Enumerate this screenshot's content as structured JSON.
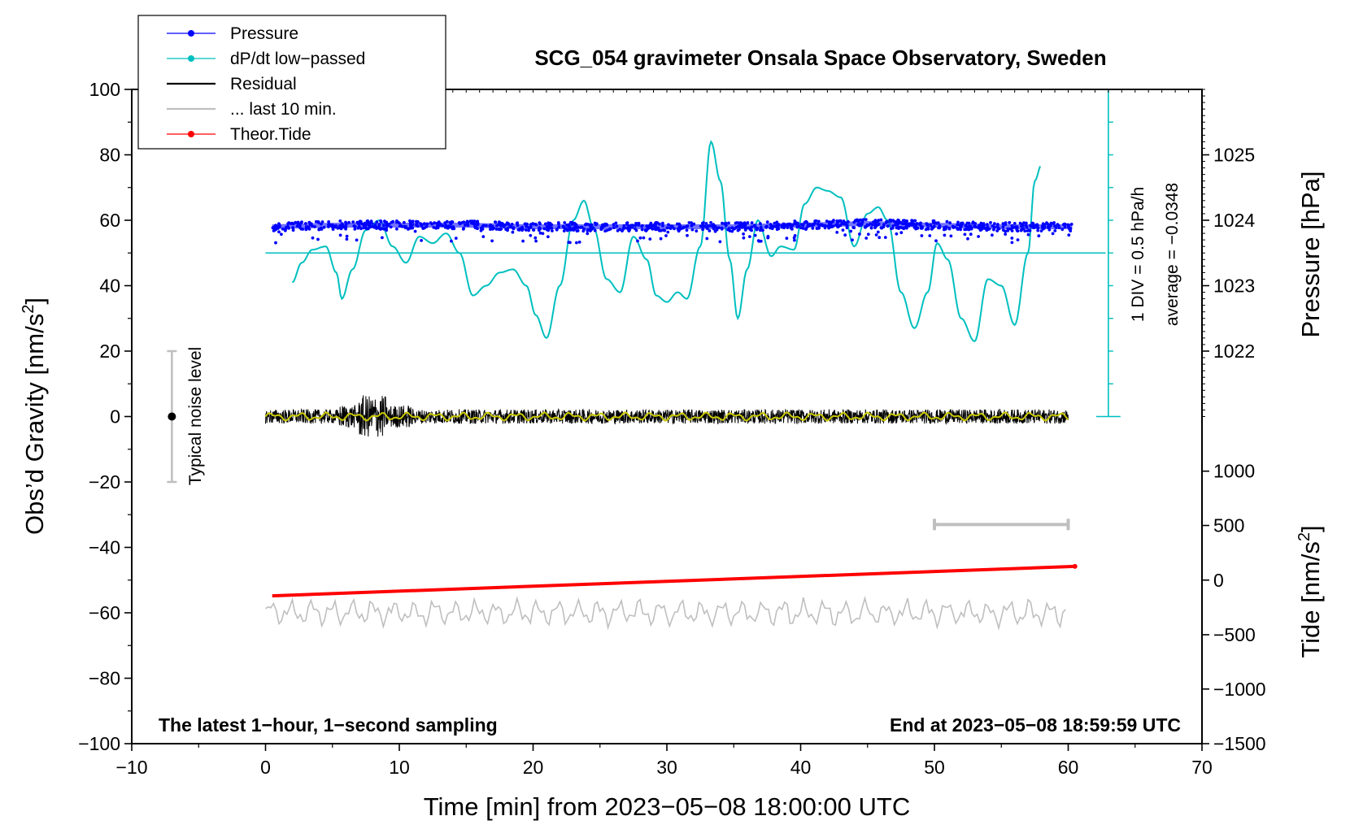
{
  "chart_data": {
    "type": "line",
    "title": "SCG_054 gravimeter Onsala Space Observatory, Sweden",
    "xlabel": "Time [min] from 2023−05−08 18:00:00 UTC",
    "ylabel_left": "Obs’d Gravity [nm/s",
    "ylabel_left_sup": "2",
    "ylabel_left_close": "]",
    "ylabel_right_pressure": "Pressure [hPa]",
    "ylabel_right_tide": "Tide [nm/s",
    "ylabel_right_tide_sup": "2",
    "ylabel_right_tide_close": "]",
    "xlim": [
      -10,
      70
    ],
    "ylim": [
      -100,
      100
    ],
    "x_ticks": [
      -10,
      0,
      10,
      20,
      30,
      40,
      50,
      60,
      70
    ],
    "x_tick_labels": [
      "−10",
      "0",
      "10",
      "20",
      "30",
      "40",
      "50",
      "60",
      "70"
    ],
    "y_ticks": [
      -100,
      -80,
      -60,
      -40,
      -20,
      0,
      20,
      40,
      60,
      80,
      100
    ],
    "y_tick_labels": [
      "−100",
      "−80",
      "−60",
      "−40",
      "−20",
      "0",
      "20",
      "40",
      "60",
      "80",
      "100"
    ],
    "pressure_axis": {
      "ticks": [
        1022,
        1023,
        1024,
        1025
      ],
      "tick_labels": [
        "1022",
        "1023",
        "1024",
        "1025"
      ],
      "gravity_equivalent": [
        20,
        40,
        60,
        80
      ]
    },
    "tide_axis": {
      "ticks": [
        -1500,
        -1000,
        -500,
        0,
        500,
        1000
      ],
      "tick_labels": [
        "−1500",
        "−1000",
        "−500",
        "0",
        "500",
        "1000"
      ],
      "gravity_equivalent": [
        -100,
        -83.3,
        -66.7,
        -50,
        -33.3,
        -16.7
      ]
    },
    "legend": {
      "placement": "top-left",
      "entries": [
        {
          "label": "Pressure",
          "color": "#0000ff",
          "style": "line-dot"
        },
        {
          "label": "dP/dt low−passed",
          "color": "#00bfbf",
          "style": "line-dot"
        },
        {
          "label": "Residual",
          "color": "#000000",
          "style": "line"
        },
        {
          "label": "... last 10 min.",
          "color": "#bfbfbf",
          "style": "line"
        },
        {
          "label": "Theor.Tide",
          "color": "#ff0000",
          "style": "line-dot"
        }
      ]
    },
    "series": [
      {
        "name": "Pressure",
        "color": "#0000ff",
        "note": "1-second samples scattered around ~58 nm/s2 equivalent",
        "x": [
          0.5,
          5,
          10,
          15,
          20,
          25,
          30,
          35,
          40,
          45,
          50,
          55,
          60
        ],
        "values": [
          58,
          58.5,
          58.5,
          58.5,
          58,
          58,
          58,
          58,
          58.5,
          59,
          58.5,
          58,
          58
        ]
      },
      {
        "name": "dP/dt low−passed",
        "color": "#00bfbf",
        "baseline": 50,
        "x": [
          2,
          2.7,
          3.5,
          4.5,
          5.3,
          5.7,
          6.5,
          7.5,
          8.5,
          9.5,
          10.5,
          11.5,
          12.5,
          13.5,
          14.5,
          15.5,
          16.5,
          17.5,
          18.5,
          19.5,
          20.2,
          21,
          22,
          23,
          23.8,
          24.5,
          25.5,
          26.5,
          27.5,
          28.5,
          29.2,
          30,
          30.8,
          31.5,
          32.5,
          33.3,
          34,
          34.7,
          35.3,
          36,
          36.8,
          37.8,
          38.5,
          39.5,
          40.3,
          41.2,
          42,
          43,
          44,
          45,
          45.8,
          46.5,
          47.5,
          48.5,
          49.5,
          50.2,
          51,
          52,
          53,
          54,
          55,
          56,
          57,
          57.5,
          58
        ],
        "values": [
          41,
          47,
          51,
          52,
          44,
          36,
          45,
          57,
          60,
          52,
          47,
          55,
          53,
          56,
          50,
          37,
          40,
          44,
          45,
          40,
          31,
          24,
          40,
          60,
          66,
          58,
          42,
          38,
          55,
          48,
          37,
          35,
          38,
          36,
          52,
          84,
          72,
          48,
          30,
          45,
          60,
          49,
          52,
          51,
          65,
          70,
          69,
          67,
          52,
          62,
          64,
          60,
          38,
          27,
          38,
          53,
          48,
          30,
          23,
          42,
          40,
          28,
          50,
          72,
          77
        ]
      },
      {
        "name": "Residual",
        "color": "#000000",
        "note": "noisy residual around 0 with amplitude ~±4, larger burst (±8) near 8 min",
        "x": [
          0,
          60
        ],
        "values": [
          0,
          0
        ]
      },
      {
        "name": "Residual (low-passed)",
        "color": "#c8c800",
        "x": [
          0,
          60
        ],
        "values": [
          0,
          0
        ]
      },
      {
        "name": "... last 10 min.",
        "color": "#bfbfbf",
        "note": "previous 10-min residual segment stretched over 0–60, offset to −60",
        "x": [
          0,
          60
        ],
        "values": [
          -60,
          -60
        ]
      },
      {
        "name": "Theor.Tide",
        "color": "#ff0000",
        "x": [
          0.5,
          60.5
        ],
        "values": [
          -54.8,
          -45.8
        ],
        "tide_units_nm_s2": [
          -142,
          113
        ]
      }
    ],
    "noise_bar": {
      "x": -7,
      "center": 0,
      "range": [
        -20,
        20
      ],
      "label": "Typical noise level"
    },
    "window_bar": {
      "x_range": [
        50,
        60
      ],
      "y": -33
    },
    "pressure_scale_bar": {
      "x": 63,
      "y_range": [
        0,
        100
      ],
      "div_label": "1 DIV = 0.5 hPa/h",
      "average_label": "average = −0.0348"
    },
    "annotations": {
      "bottom_left": "The latest 1−hour, 1−second sampling",
      "bottom_right": "End at 2023−05−08 18:59:59 UTC"
    }
  }
}
